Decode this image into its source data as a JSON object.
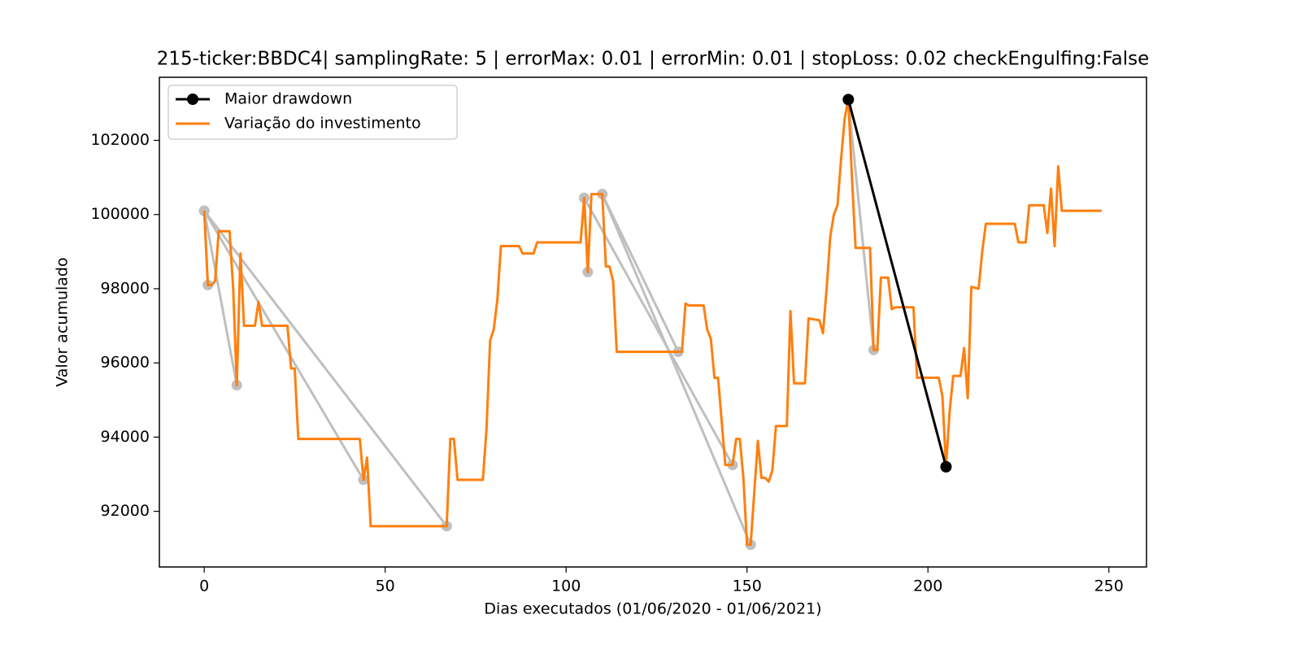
{
  "chart_data": {
    "type": "line",
    "title": "215-ticker:BBDC4| samplingRate: 5 | errorMax: 0.01 | errorMin: 0.01 | stopLoss: 0.02 checkEngulfing:False",
    "x_label": "Dias executados (01/06/2020 - 01/06/2021)",
    "y_label": "Valor acumulado",
    "xlim": [
      -12.4,
      260.4
    ],
    "xticks": [
      0,
      50,
      100,
      150,
      200,
      250
    ],
    "ylim": [
      90500,
      103700
    ],
    "yticks": [
      92000,
      94000,
      96000,
      98000,
      100000,
      102000
    ],
    "legend": "upper left",
    "series": [
      {
        "name": "Maior drawdown",
        "color": "#000000",
        "marker": true,
        "x": [
          178,
          205
        ],
        "values": [
          103100,
          93200
        ]
      },
      {
        "name": "Variação do investimento",
        "color": "#ff7f0e",
        "marker": false,
        "x": [
          0,
          1,
          2,
          3,
          4,
          7,
          8,
          9,
          10,
          11,
          14,
          15,
          16,
          23,
          24,
          25,
          26,
          43,
          44,
          45,
          46,
          67,
          68,
          69,
          70,
          77,
          78,
          79,
          80,
          81,
          82,
          87,
          88,
          91,
          92,
          104,
          105,
          106,
          107,
          110,
          111,
          112,
          113,
          114,
          132,
          133,
          134,
          138,
          139,
          140,
          141,
          142,
          144,
          146,
          147,
          148,
          149,
          150,
          151,
          152,
          153,
          154,
          155,
          156,
          157,
          158,
          161,
          162,
          163,
          166,
          167,
          170,
          171,
          172,
          173,
          174,
          175,
          176,
          177,
          178,
          179,
          180,
          184,
          185,
          186,
          187,
          189,
          190,
          191,
          196,
          197,
          203,
          204,
          205,
          206,
          207,
          209,
          210,
          211,
          212,
          214,
          215,
          216,
          224,
          225,
          227,
          228,
          232,
          233,
          234,
          235,
          236,
          237,
          248
        ],
        "values": [
          100100,
          98100,
          98100,
          98200,
          99550,
          99550,
          98000,
          95400,
          98950,
          97000,
          97000,
          97650,
          97000,
          97000,
          95850,
          95850,
          93950,
          93950,
          92850,
          93450,
          91600,
          91600,
          93950,
          93950,
          92850,
          92850,
          94200,
          96600,
          96900,
          97700,
          99150,
          99150,
          98950,
          98950,
          99250,
          99250,
          100450,
          98450,
          100550,
          100550,
          98600,
          98600,
          98200,
          96300,
          96300,
          97600,
          97550,
          97550,
          96900,
          96650,
          95600,
          95600,
          93250,
          93250,
          93950,
          93950,
          92900,
          91100,
          91100,
          92500,
          93900,
          92900,
          92900,
          92800,
          93100,
          94300,
          94300,
          97400,
          95450,
          95450,
          97200,
          97150,
          96800,
          98000,
          99400,
          100000,
          100250,
          101500,
          102600,
          103100,
          101000,
          99100,
          99100,
          96350,
          96350,
          98300,
          98300,
          97450,
          97500,
          97500,
          95600,
          95600,
          95100,
          93200,
          94700,
          95650,
          95650,
          96400,
          95050,
          98050,
          98000,
          99000,
          99750,
          99750,
          99250,
          99250,
          100250,
          100250,
          99500,
          100700,
          99150,
          101300,
          100100,
          100100
        ]
      }
    ],
    "drawdowns_color": "#bfbfbf",
    "drawdowns": [
      {
        "x": [
          0,
          1
        ],
        "values": [
          100100,
          98100
        ]
      },
      {
        "x": [
          0,
          9
        ],
        "values": [
          100100,
          95400
        ]
      },
      {
        "x": [
          0,
          44
        ],
        "values": [
          100100,
          92850
        ]
      },
      {
        "x": [
          0,
          67
        ],
        "values": [
          100100,
          91600
        ]
      },
      {
        "x": [
          105,
          106
        ],
        "values": [
          100450,
          98450
        ]
      },
      {
        "x": [
          105,
          146
        ],
        "values": [
          100450,
          93250
        ]
      },
      {
        "x": [
          110,
          131
        ],
        "values": [
          100550,
          96300
        ]
      },
      {
        "x": [
          110,
          151
        ],
        "values": [
          100550,
          91100
        ]
      },
      {
        "x": [
          178,
          185
        ],
        "values": [
          103100,
          96350
        ]
      }
    ]
  }
}
